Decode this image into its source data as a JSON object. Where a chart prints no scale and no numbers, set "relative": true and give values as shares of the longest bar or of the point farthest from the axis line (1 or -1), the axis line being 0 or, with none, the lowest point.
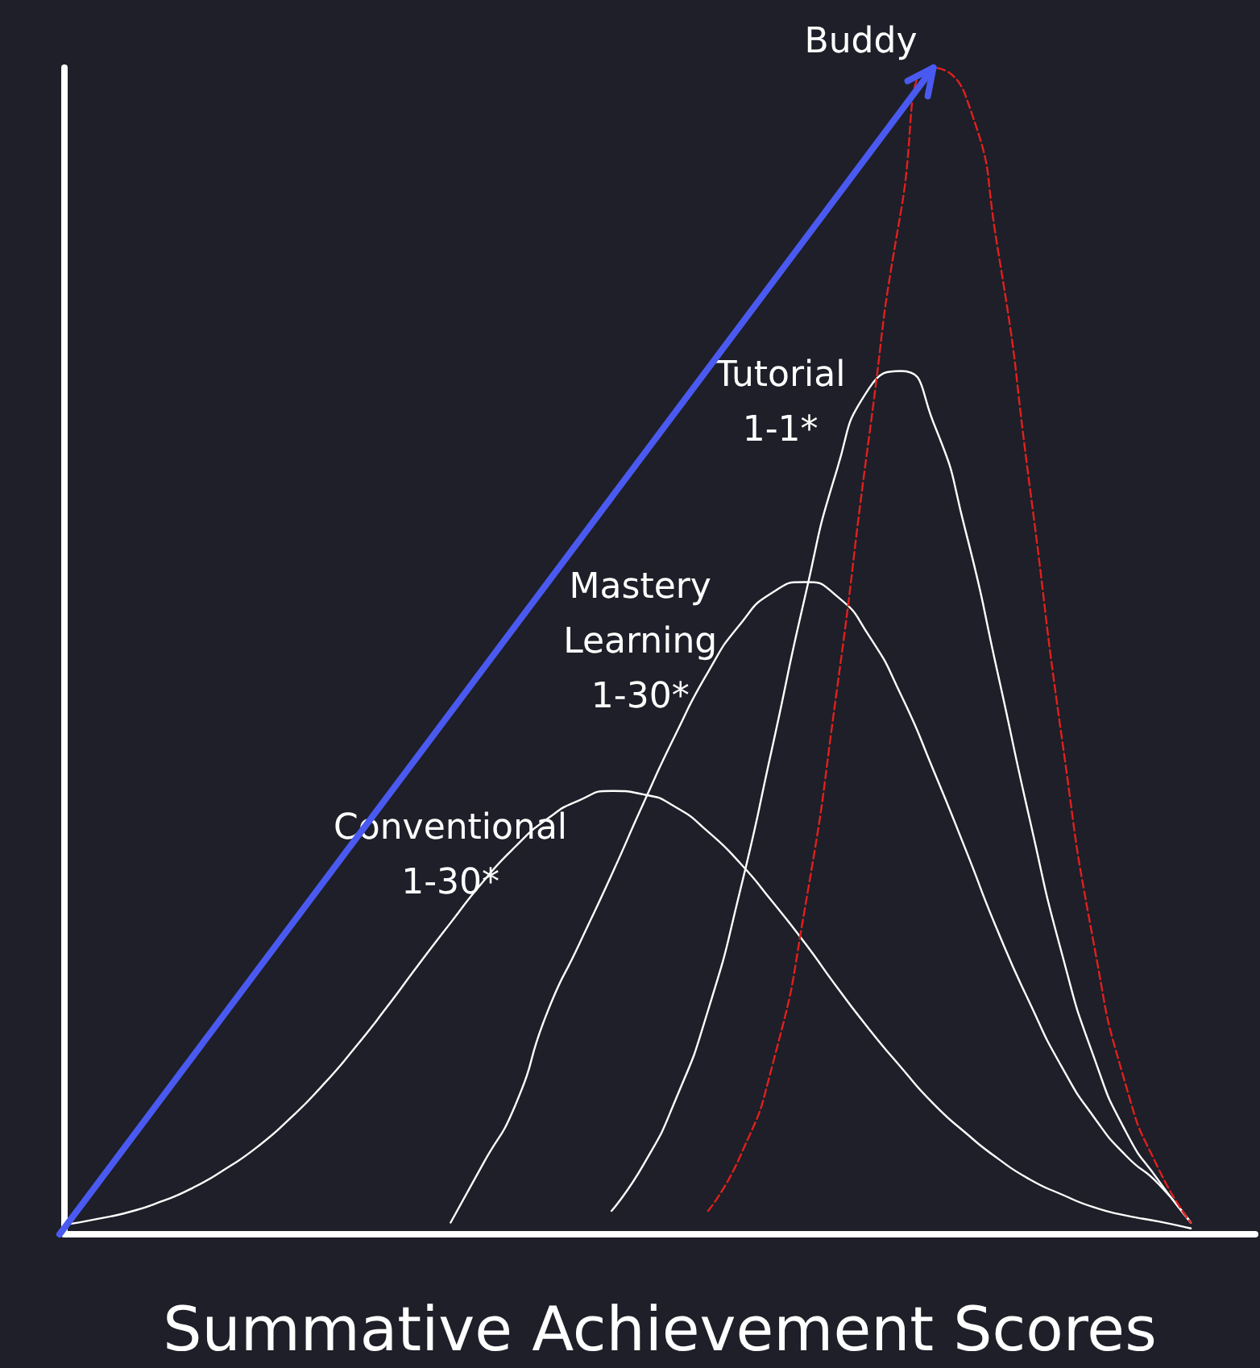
{
  "chart_data": {
    "type": "line",
    "relative": true,
    "xlabel": "Summative Achievement Scores",
    "marker": "none",
    "categories": [
      null,
      null,
      null,
      null,
      null,
      null,
      null,
      null,
      null,
      null,
      null,
      null,
      null,
      null,
      null,
      null,
      null,
      null,
      null,
      null,
      null,
      null,
      null,
      null,
      null,
      null,
      null,
      null,
      null,
      null,
      null,
      null,
      null,
      null,
      null,
      null,
      null,
      null
    ],
    "series": [
      {
        "name": "Conventional\n1-30*",
        "color": "#ffffff",
        "line_style": "solid",
        "values": [
          0.008,
          0.013,
          0.019,
          0.028,
          0.04,
          0.056,
          0.075,
          0.099,
          0.127,
          0.159,
          0.194,
          0.231,
          0.267,
          0.302,
          0.332,
          0.356,
          0.372,
          0.38,
          0.377,
          0.366,
          0.345,
          0.318,
          0.285,
          0.25,
          0.212,
          0.176,
          0.143,
          0.112,
          0.087,
          0.065,
          0.047,
          0.034,
          0.023,
          0.016,
          0.011,
          0.005,
          null,
          null
        ]
      },
      {
        "name": "Mastery\nLearning\n1-30*",
        "color": "#ffffff",
        "line_style": "solid",
        "values": [
          null,
          null,
          null,
          null,
          null,
          null,
          null,
          null,
          null,
          null,
          null,
          null,
          0.01,
          0.06,
          0.11,
          0.19,
          0.249,
          0.308,
          0.37,
          0.429,
          0.482,
          0.523,
          0.55,
          0.559,
          0.547,
          0.513,
          0.462,
          0.398,
          0.33,
          0.26,
          0.198,
          0.143,
          0.1,
          0.067,
          0.043,
          0.01,
          null,
          null
        ]
      },
      {
        "name": "Tutorial\n1-1*",
        "color": "#ffffff",
        "line_style": "solid",
        "values": [
          null,
          null,
          null,
          null,
          null,
          null,
          null,
          null,
          null,
          null,
          null,
          null,
          null,
          null,
          null,
          null,
          null,
          0.02,
          0.06,
          0.116,
          0.192,
          0.295,
          0.418,
          0.545,
          0.655,
          0.725,
          0.74,
          0.696,
          0.603,
          0.481,
          0.355,
          0.24,
          0.151,
          0.087,
          0.046,
          0.01,
          null,
          null
        ]
      },
      {
        "name": "Buddy",
        "color": "#e0201e",
        "line_style": "dashed",
        "values": [
          null,
          null,
          null,
          null,
          null,
          null,
          null,
          null,
          null,
          null,
          null,
          null,
          null,
          null,
          null,
          null,
          null,
          null,
          null,
          null,
          0.02,
          0.067,
          0.145,
          0.278,
          0.466,
          0.683,
          0.878,
          1,
          0.976,
          0.845,
          0.64,
          0.424,
          0.247,
          0.126,
          0.056,
          0.01,
          null,
          null
        ]
      }
    ]
  }
}
